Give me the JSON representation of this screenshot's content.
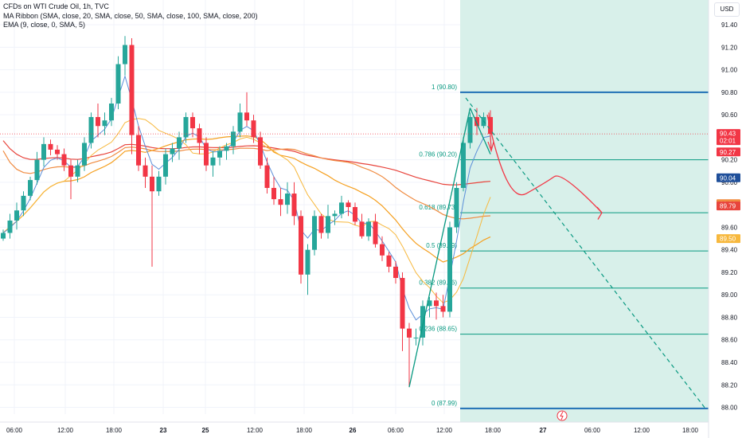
{
  "legend": {
    "line1": "CFDs on WTI Crude Oil, 1h, TVC",
    "line2": "MA Ribbon (SMA, close, 20, SMA, close, 50, SMA, close, 100, SMA, close, 200)",
    "line3": "EMA (9, close, 0, SMA, 5)"
  },
  "currency": "USD",
  "colors": {
    "up": "#26a69a",
    "down": "#f23645",
    "fib_zone": "#d8f0ea",
    "fib_line": "#089981",
    "range_line": "#1f6fb5",
    "ema": "#5b8fd9",
    "ma20": "#f7b83d",
    "ma50": "#f5a020",
    "ma100": "#f08b40",
    "ma200": "#e8443c"
  },
  "chart_data": {
    "type": "candlestick",
    "y_axis": {
      "ticks": [
        "91.40",
        "91.20",
        "91.00",
        "90.80",
        "90.60",
        "90.40",
        "90.20",
        "90.00",
        "89.80",
        "89.60",
        "89.40",
        "89.20",
        "89.00",
        "88.80",
        "88.60",
        "88.40",
        "88.20",
        "88.00"
      ],
      "range": [
        87.94,
        91.62
      ]
    },
    "x_axis": {
      "ticks": [
        "06:00",
        "12:00",
        "18:00",
        "23",
        "25",
        "12:00",
        "18:00",
        "26",
        "06:00",
        "12:00",
        "18:00",
        "27",
        "06:00",
        "12:00",
        "18:00"
      ]
    },
    "price_labels": [
      {
        "text": "90.43",
        "sub": "02:01",
        "value": 90.43,
        "bg": "#f23645"
      },
      {
        "text": "90.27",
        "value": 90.27,
        "bg": "#f23645"
      },
      {
        "text": "90.04",
        "value": 90.04,
        "bg": "#1f4f9a"
      },
      {
        "text": "89.81",
        "value": 89.81,
        "bg": "#f08b40"
      },
      {
        "text": "89.79",
        "value": 89.79,
        "bg": "#e8443c"
      },
      {
        "text": "89.50",
        "value": 89.5,
        "bg": "#f7b83d"
      }
    ],
    "fibonacci": [
      {
        "label": "1 (90.80)",
        "value": 90.8
      },
      {
        "label": "0.786 (90.20)",
        "value": 90.2
      },
      {
        "label": "0.618 (89.73)",
        "value": 89.73
      },
      {
        "label": "0.5 (89.39)",
        "value": 89.39
      },
      {
        "label": "0.382 (89.06)",
        "value": 89.06
      },
      {
        "label": "0.236 (88.65)",
        "value": 88.65
      },
      {
        "label": "0 (87.99)",
        "value": 87.99
      }
    ],
    "candles": [
      [
        89.5,
        89.58,
        89.48,
        89.55
      ],
      [
        89.55,
        89.72,
        89.5,
        89.66
      ],
      [
        89.66,
        89.82,
        89.58,
        89.75
      ],
      [
        89.75,
        89.92,
        89.7,
        89.88
      ],
      [
        89.88,
        90.05,
        89.84,
        90.02
      ],
      [
        90.02,
        90.27,
        89.98,
        90.2
      ],
      [
        90.2,
        90.4,
        90.14,
        90.34
      ],
      [
        90.34,
        90.38,
        90.24,
        90.29
      ],
      [
        90.29,
        90.33,
        90.2,
        90.25
      ],
      [
        90.25,
        90.3,
        90.1,
        90.15
      ],
      [
        90.15,
        90.2,
        89.85,
        90.05
      ],
      [
        90.05,
        90.2,
        90.0,
        90.15
      ],
      [
        90.15,
        90.4,
        90.1,
        90.35
      ],
      [
        90.35,
        90.62,
        90.3,
        90.58
      ],
      [
        90.58,
        90.7,
        90.4,
        90.5
      ],
      [
        90.5,
        90.62,
        90.42,
        90.55
      ],
      [
        90.55,
        90.75,
        90.5,
        90.7
      ],
      [
        90.7,
        91.12,
        90.65,
        91.05
      ],
      [
        91.05,
        91.3,
        90.95,
        91.22
      ],
      [
        91.22,
        91.28,
        90.25,
        90.42
      ],
      [
        90.42,
        90.5,
        90.1,
        90.15
      ],
      [
        90.15,
        90.22,
        89.95,
        90.05
      ],
      [
        90.05,
        90.15,
        89.25,
        89.92
      ],
      [
        89.92,
        90.1,
        89.88,
        90.05
      ],
      [
        90.05,
        90.3,
        89.98,
        90.25
      ],
      [
        90.25,
        90.35,
        90.18,
        90.3
      ],
      [
        90.3,
        90.45,
        90.2,
        90.4
      ],
      [
        90.4,
        90.62,
        90.35,
        90.58
      ],
      [
        90.58,
        90.62,
        90.4,
        90.48
      ],
      [
        90.48,
        90.52,
        90.25,
        90.35
      ],
      [
        90.35,
        90.4,
        90.1,
        90.15
      ],
      [
        90.15,
        90.28,
        90.05,
        90.22
      ],
      [
        90.22,
        90.32,
        90.15,
        90.28
      ],
      [
        90.28,
        90.35,
        90.2,
        90.32
      ],
      [
        90.32,
        90.5,
        90.25,
        90.45
      ],
      [
        90.45,
        90.7,
        90.4,
        90.62
      ],
      [
        90.62,
        90.8,
        90.5,
        90.55
      ],
      [
        90.55,
        90.6,
        90.35,
        90.4
      ],
      [
        90.4,
        90.45,
        90.12,
        90.15
      ],
      [
        90.15,
        90.22,
        89.9,
        89.95
      ],
      [
        89.95,
        90.05,
        89.8,
        89.85
      ],
      [
        89.85,
        89.95,
        89.7,
        89.8
      ],
      [
        89.8,
        90.0,
        89.72,
        89.9
      ],
      [
        89.9,
        90.0,
        89.62,
        89.7
      ],
      [
        89.7,
        89.75,
        89.1,
        89.18
      ],
      [
        89.18,
        89.45,
        89.0,
        89.4
      ],
      [
        89.4,
        89.75,
        89.35,
        89.7
      ],
      [
        89.7,
        89.72,
        89.5,
        89.55
      ],
      [
        89.55,
        89.8,
        89.5,
        89.7
      ],
      [
        89.7,
        89.75,
        89.62,
        89.72
      ],
      [
        89.72,
        89.88,
        89.68,
        89.82
      ],
      [
        89.82,
        89.84,
        89.7,
        89.78
      ],
      [
        89.78,
        89.82,
        89.62,
        89.65
      ],
      [
        89.65,
        89.72,
        89.5,
        89.52
      ],
      [
        89.52,
        89.68,
        89.48,
        89.65
      ],
      [
        89.65,
        89.72,
        89.42,
        89.45
      ],
      [
        89.45,
        89.52,
        89.3,
        89.35
      ],
      [
        89.35,
        89.38,
        89.2,
        89.25
      ],
      [
        89.25,
        89.3,
        89.1,
        89.15
      ],
      [
        89.15,
        89.2,
        88.5,
        88.7
      ],
      [
        88.7,
        88.75,
        88.18,
        88.62
      ],
      [
        88.62,
        88.7,
        88.55,
        88.62
      ],
      [
        88.62,
        88.95,
        88.55,
        88.9
      ],
      [
        88.9,
        88.98,
        88.8,
        88.95
      ],
      [
        88.95,
        89.02,
        88.78,
        88.9
      ],
      [
        88.9,
        89.0,
        88.8,
        88.85
      ],
      [
        88.85,
        89.65,
        88.8,
        89.6
      ],
      [
        89.6,
        90.0,
        89.55,
        89.95
      ],
      [
        89.95,
        90.4,
        89.92,
        90.35
      ],
      [
        90.35,
        90.62,
        90.3,
        90.58
      ],
      [
        90.58,
        90.66,
        90.42,
        90.5
      ],
      [
        90.5,
        90.62,
        90.48,
        90.58
      ],
      [
        90.58,
        90.64,
        90.38,
        90.43
      ]
    ]
  }
}
